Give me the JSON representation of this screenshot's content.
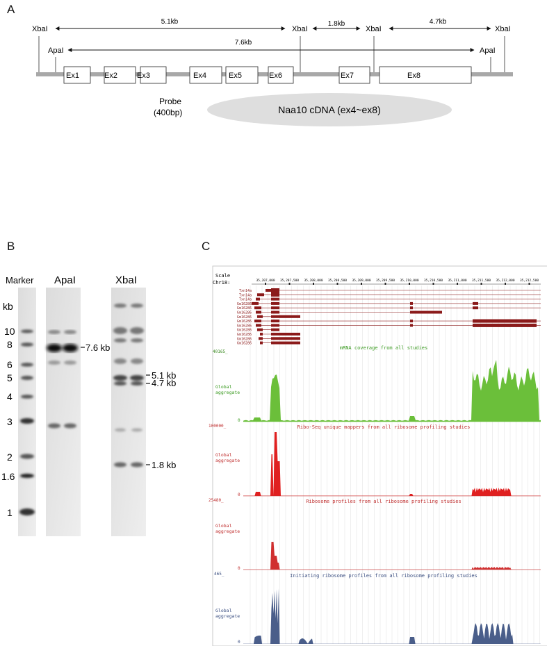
{
  "panel_a": {
    "letter": "A",
    "sites": {
      "xba1": "XbaI",
      "apa1": "ApaI",
      "xba2": "XbaI",
      "xba3": "XbaI",
      "apa2": "ApaI",
      "xba4": "XbaI"
    },
    "distances": {
      "d1": "5.1kb",
      "d2": "1.8kb",
      "d3": "4.7kb",
      "d4": "7.6kb"
    },
    "exons": [
      "Ex1",
      "Ex2",
      "Ex3",
      "Ex4",
      "Ex5",
      "Ex6",
      "Ex7",
      "Ex8"
    ],
    "probe_line1": "Probe",
    "probe_line2": "(400bp)",
    "cdna_label": "Naa10 cDNA (ex4~ex8)"
  },
  "panel_b": {
    "letter": "B",
    "lane_marker": "Marker",
    "lane_apa": "ApaI",
    "lane_xba": "XbaI",
    "kb_label": "kb",
    "marker_ticks": [
      "10",
      "8",
      "6",
      "5",
      "4",
      "3",
      "2",
      "1.6",
      "1"
    ],
    "band_labels": {
      "apa_band": "7.6 kb",
      "xba_b1": "5.1 kb",
      "xba_b2": "4.7 kb",
      "xba_b3": "1.8 kb"
    }
  },
  "panel_c": {
    "letter": "C",
    "scale": "Scale",
    "chrom": "Chr18:",
    "coords": [
      "35,207,000",
      "35,207,500",
      "35,208,000",
      "35,208,500",
      "35,209,000",
      "35,209,500",
      "35,210,000",
      "35,210,500",
      "35,211,000",
      "35,211,500",
      "35,212,000",
      "35,212,500"
    ],
    "genes": [
      "Txn14a",
      "Txn14a",
      "Txn14a",
      "Gm16286",
      "Gm16286",
      "Gm16286",
      "Gm16286",
      "Gm16286",
      "Gm16286",
      "Gm16286",
      "Gm16286",
      "Gm16286",
      "Gm16286"
    ],
    "track1_max": "40165_",
    "track1_title": "mRNA coverage from all studies",
    "track1_label1": "Global",
    "track1_label2": "aggregate",
    "track2_max": "100000_",
    "track2_title": "Ribo-Seq unique mappers from all ribosome profiling studies",
    "track2_label1": "Global",
    "track2_label2": "aggregate",
    "track3_max": "25480_",
    "track3_title": "Ribosome profiles from all ribosome profiling studies",
    "track3_label1": "Global",
    "track3_label2": "aggregate",
    "track4_max": "465_",
    "track4_title": "Initiating ribosome profiles from all ribosome profiling studies",
    "track4_label1": "Global",
    "track4_label2": "aggregate",
    "zero": "0"
  },
  "colors": {
    "green": "#6bbf3a",
    "red": "#d42a2a",
    "blue": "#4a5e8a",
    "gene": "#8b1a1a"
  }
}
